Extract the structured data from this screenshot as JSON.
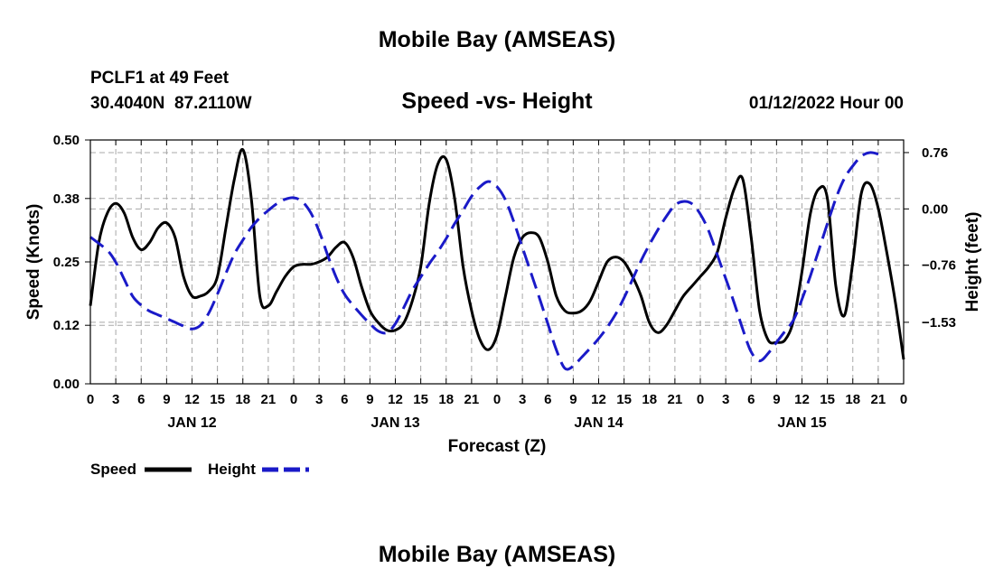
{
  "header": {
    "title": "Mobile Bay (AMSEAS)",
    "station": "PCLF1 at 49 Feet",
    "coordinates": "30.4040N  87.2110W",
    "subtitle": "Speed -vs- Height",
    "date": "01/12/2022 Hour 00"
  },
  "footer": {
    "title": "Mobile Bay (AMSEAS)"
  },
  "legend": {
    "speed_label": "Speed",
    "height_label": "Height"
  },
  "chart_data": {
    "type": "line",
    "title": "Speed -vs- Height",
    "xlabel": "Forecast (Z)",
    "ylabel": "Speed (Knots)",
    "y2label": "Height (feet)",
    "x_unit": "hours",
    "xlim": [
      0,
      96
    ],
    "x_tick_step": 3,
    "x_tick_labels": [
      "0",
      "3",
      "6",
      "9",
      "12",
      "15",
      "18",
      "21",
      "0",
      "3",
      "6",
      "9",
      "12",
      "15",
      "18",
      "21",
      "0",
      "3",
      "6",
      "9",
      "12",
      "15",
      "18",
      "21",
      "0",
      "3",
      "6",
      "9",
      "12",
      "15",
      "18",
      "21",
      "0"
    ],
    "date_labels": [
      {
        "hour": 12,
        "text": "JAN 12"
      },
      {
        "hour": 36,
        "text": "JAN 13"
      },
      {
        "hour": 60,
        "text": "JAN 14"
      },
      {
        "hour": 84,
        "text": "JAN 15"
      }
    ],
    "ylim": [
      0,
      0.5
    ],
    "y_ticks": [
      0.0,
      0.12,
      0.25,
      0.38,
      0.5
    ],
    "y_tick_labels": [
      "0.00",
      "0.12",
      "0.25",
      "0.38",
      "0.50"
    ],
    "y2lim": [
      -2.36,
      0.93
    ],
    "y2_ticks": [
      -1.53,
      -0.76,
      0.0,
      0.76
    ],
    "y2_tick_labels": [
      "−1.53",
      "−0.76",
      "0.00",
      "0.76"
    ],
    "grid": true,
    "series": [
      {
        "name": "Speed",
        "axis": "left",
        "color": "#000000",
        "style": "solid",
        "points": [
          [
            0,
            0.16
          ],
          [
            1,
            0.29
          ],
          [
            2,
            0.35
          ],
          [
            3,
            0.37
          ],
          [
            4,
            0.35
          ],
          [
            5,
            0.3
          ],
          [
            6,
            0.275
          ],
          [
            7,
            0.29
          ],
          [
            8,
            0.32
          ],
          [
            9,
            0.33
          ],
          [
            10,
            0.3
          ],
          [
            11,
            0.22
          ],
          [
            12,
            0.18
          ],
          [
            13,
            0.18
          ],
          [
            14,
            0.19
          ],
          [
            15,
            0.22
          ],
          [
            16,
            0.32
          ],
          [
            17,
            0.42
          ],
          [
            18,
            0.48
          ],
          [
            19,
            0.38
          ],
          [
            20,
            0.18
          ],
          [
            21,
            0.16
          ],
          [
            22,
            0.19
          ],
          [
            23,
            0.22
          ],
          [
            24,
            0.24
          ],
          [
            25,
            0.245
          ],
          [
            26,
            0.245
          ],
          [
            27,
            0.25
          ],
          [
            28,
            0.26
          ],
          [
            29,
            0.28
          ],
          [
            30,
            0.29
          ],
          [
            31,
            0.26
          ],
          [
            32,
            0.2
          ],
          [
            33,
            0.15
          ],
          [
            34,
            0.125
          ],
          [
            35,
            0.11
          ],
          [
            36,
            0.11
          ],
          [
            37,
            0.125
          ],
          [
            38,
            0.17
          ],
          [
            39,
            0.24
          ],
          [
            40,
            0.37
          ],
          [
            41,
            0.45
          ],
          [
            42,
            0.46
          ],
          [
            43,
            0.38
          ],
          [
            44,
            0.24
          ],
          [
            45,
            0.15
          ],
          [
            46,
            0.09
          ],
          [
            47,
            0.07
          ],
          [
            48,
            0.1
          ],
          [
            49,
            0.18
          ],
          [
            50,
            0.26
          ],
          [
            51,
            0.3
          ],
          [
            52,
            0.31
          ],
          [
            53,
            0.3
          ],
          [
            54,
            0.25
          ],
          [
            55,
            0.18
          ],
          [
            56,
            0.15
          ],
          [
            57,
            0.145
          ],
          [
            58,
            0.15
          ],
          [
            59,
            0.17
          ],
          [
            60,
            0.21
          ],
          [
            61,
            0.25
          ],
          [
            62,
            0.26
          ],
          [
            63,
            0.25
          ],
          [
            64,
            0.22
          ],
          [
            65,
            0.18
          ],
          [
            66,
            0.125
          ],
          [
            67,
            0.105
          ],
          [
            68,
            0.12
          ],
          [
            69,
            0.15
          ],
          [
            70,
            0.18
          ],
          [
            71,
            0.2
          ],
          [
            72,
            0.22
          ],
          [
            73,
            0.24
          ],
          [
            74,
            0.27
          ],
          [
            75,
            0.34
          ],
          [
            76,
            0.4
          ],
          [
            77,
            0.42
          ],
          [
            78,
            0.3
          ],
          [
            79,
            0.15
          ],
          [
            80,
            0.09
          ],
          [
            81,
            0.085
          ],
          [
            82,
            0.09
          ],
          [
            83,
            0.13
          ],
          [
            84,
            0.23
          ],
          [
            85,
            0.35
          ],
          [
            86,
            0.4
          ],
          [
            87,
            0.38
          ],
          [
            88,
            0.2
          ],
          [
            89,
            0.14
          ],
          [
            90,
            0.25
          ],
          [
            91,
            0.39
          ],
          [
            92,
            0.41
          ],
          [
            93,
            0.36
          ],
          [
            94,
            0.27
          ],
          [
            95,
            0.17
          ],
          [
            96,
            0.05
          ]
        ]
      },
      {
        "name": "Height",
        "axis": "right",
        "color": "#1a1ac8",
        "style": "dashed",
        "points": [
          [
            0,
            -0.38
          ],
          [
            2,
            -0.56
          ],
          [
            3,
            -0.72
          ],
          [
            4,
            -0.95
          ],
          [
            5,
            -1.18
          ],
          [
            6,
            -1.3
          ],
          [
            7,
            -1.38
          ],
          [
            8,
            -1.43
          ],
          [
            9,
            -1.48
          ],
          [
            10,
            -1.53
          ],
          [
            11,
            -1.58
          ],
          [
            12,
            -1.62
          ],
          [
            13,
            -1.57
          ],
          [
            14,
            -1.4
          ],
          [
            15,
            -1.15
          ],
          [
            16,
            -0.87
          ],
          [
            17,
            -0.61
          ],
          [
            18,
            -0.42
          ],
          [
            19,
            -0.25
          ],
          [
            20,
            -0.12
          ],
          [
            21,
            -0.02
          ],
          [
            22,
            0.07
          ],
          [
            23,
            0.13
          ],
          [
            24,
            0.15
          ],
          [
            25,
            0.1
          ],
          [
            26,
            -0.05
          ],
          [
            27,
            -0.3
          ],
          [
            28,
            -0.62
          ],
          [
            29,
            -0.92
          ],
          [
            30,
            -1.15
          ],
          [
            31,
            -1.3
          ],
          [
            32,
            -1.43
          ],
          [
            33,
            -1.55
          ],
          [
            34,
            -1.65
          ],
          [
            35,
            -1.67
          ],
          [
            36,
            -1.55
          ],
          [
            37,
            -1.33
          ],
          [
            38,
            -1.1
          ],
          [
            39,
            -0.92
          ],
          [
            40,
            -0.74
          ],
          [
            41,
            -0.58
          ],
          [
            42,
            -0.4
          ],
          [
            43,
            -0.2
          ],
          [
            44,
            -0.02
          ],
          [
            45,
            0.17
          ],
          [
            46,
            0.3
          ],
          [
            47,
            0.37
          ],
          [
            48,
            0.3
          ],
          [
            49,
            0.12
          ],
          [
            50,
            -0.18
          ],
          [
            51,
            -0.52
          ],
          [
            52,
            -0.86
          ],
          [
            53,
            -1.2
          ],
          [
            54,
            -1.55
          ],
          [
            55,
            -1.9
          ],
          [
            56,
            -2.15
          ],
          [
            57,
            -2.12
          ],
          [
            58,
            -2.0
          ],
          [
            59,
            -1.88
          ],
          [
            60,
            -1.75
          ],
          [
            61,
            -1.6
          ],
          [
            62,
            -1.42
          ],
          [
            63,
            -1.2
          ],
          [
            64,
            -0.95
          ],
          [
            65,
            -0.7
          ],
          [
            66,
            -0.48
          ],
          [
            67,
            -0.28
          ],
          [
            68,
            -0.1
          ],
          [
            69,
            0.05
          ],
          [
            70,
            0.1
          ],
          [
            71,
            0.07
          ],
          [
            72,
            -0.07
          ],
          [
            73,
            -0.3
          ],
          [
            74,
            -0.62
          ],
          [
            75,
            -0.94
          ],
          [
            76,
            -1.27
          ],
          [
            77,
            -1.62
          ],
          [
            78,
            -1.93
          ],
          [
            79,
            -2.05
          ],
          [
            80,
            -1.95
          ],
          [
            81,
            -1.8
          ],
          [
            82,
            -1.65
          ],
          [
            83,
            -1.5
          ],
          [
            84,
            -1.22
          ],
          [
            85,
            -0.9
          ],
          [
            86,
            -0.55
          ],
          [
            87,
            -0.2
          ],
          [
            88,
            0.14
          ],
          [
            89,
            0.41
          ],
          [
            90,
            0.58
          ],
          [
            91,
            0.71
          ],
          [
            92,
            0.76
          ],
          [
            93,
            0.74
          ]
        ]
      }
    ]
  }
}
